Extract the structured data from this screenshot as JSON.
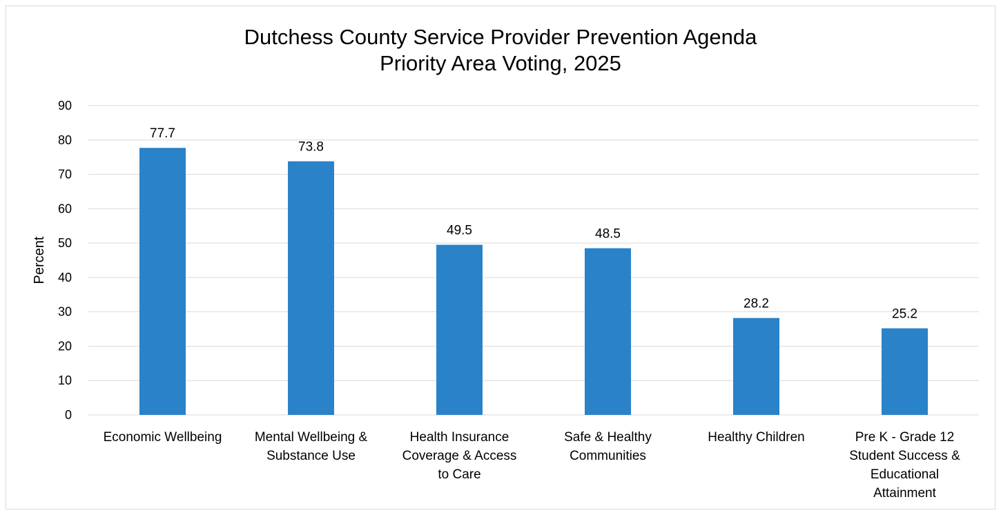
{
  "chart_data": {
    "type": "bar",
    "title": [
      "Dutchess County Service Provider Prevention Agenda",
      "Priority Area Voting, 2025"
    ],
    "xlabel": "",
    "ylabel": "Percent",
    "ylim": [
      0,
      90
    ],
    "yticks": [
      0,
      10,
      20,
      30,
      40,
      50,
      60,
      70,
      80,
      90
    ],
    "grid": true,
    "legend": "none",
    "bar_color": "#2a82c9",
    "categories": [
      [
        "Economic Wellbeing"
      ],
      [
        "Mental Wellbeing &",
        "Substance Use"
      ],
      [
        "Health Insurance",
        "Coverage & Access",
        "to Care"
      ],
      [
        "Safe & Healthy",
        "Communities"
      ],
      [
        "Healthy Children"
      ],
      [
        "Pre K - Grade 12",
        "Student Success &",
        "Educational",
        "Attainment"
      ]
    ],
    "values": [
      77.7,
      73.8,
      49.5,
      48.5,
      28.2,
      25.2
    ],
    "data_labels": [
      "77.7",
      "73.8",
      "49.5",
      "48.5",
      "28.2",
      "25.2"
    ]
  }
}
